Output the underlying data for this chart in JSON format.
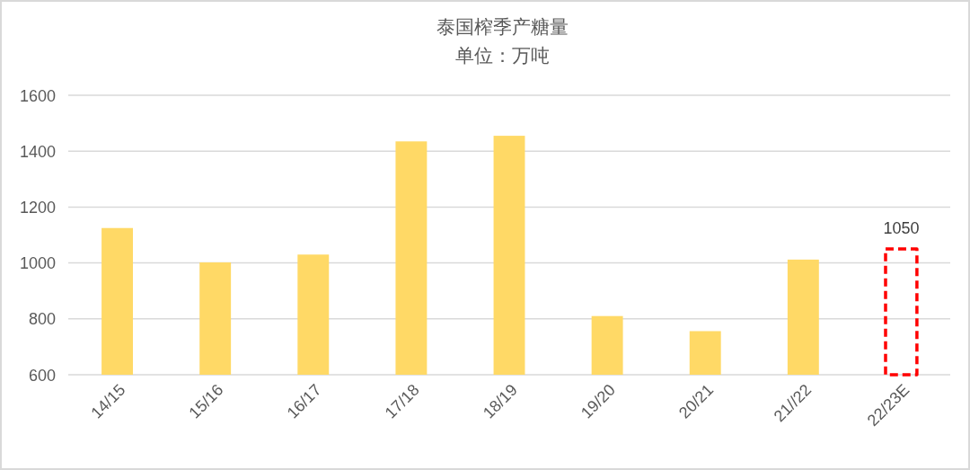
{
  "chart_data": {
    "type": "bar",
    "title": "泰国榨季产糖量",
    "subtitle": "单位：万吨",
    "categories": [
      "14/15",
      "15/16",
      "16/17",
      "17/18",
      "18/19",
      "19/20",
      "20/21",
      "21//22",
      "22/23E"
    ],
    "stacked": true,
    "series": [
      {
        "color": "#ffd966",
        "values": [
          1125,
          1002,
          1030,
          1435,
          1455,
          810,
          756,
          1012,
          null
        ]
      },
      {
        "color": "#ff0000",
        "line_style": "dashed",
        "values": [
          null,
          null,
          null,
          null,
          null,
          null,
          null,
          null,
          1050
        ],
        "value_labels": [
          null,
          null,
          null,
          null,
          null,
          null,
          null,
          null,
          "1050"
        ]
      }
    ],
    "ylim": [
      600,
      1600
    ],
    "yticks": [
      600,
      800,
      1000,
      1200,
      1400,
      1600
    ],
    "grid": "y"
  }
}
